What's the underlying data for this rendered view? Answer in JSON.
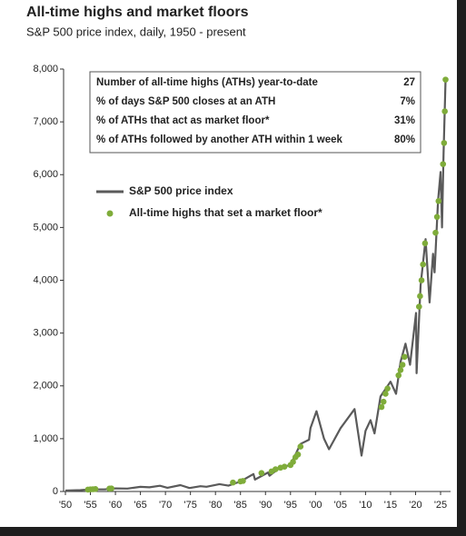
{
  "chart_data": {
    "type": "line",
    "title": "All-time highs and market floors",
    "subtitle": "S&P 500 price index, daily, 1950 - present",
    "xlim": [
      1950,
      2027
    ],
    "ylim": [
      0,
      8000
    ],
    "xticks": [
      {
        "value": 1950,
        "label": "'50"
      },
      {
        "value": 1955,
        "label": "'55"
      },
      {
        "value": 1960,
        "label": "'60"
      },
      {
        "value": 1965,
        "label": "'65"
      },
      {
        "value": 1970,
        "label": "'70"
      },
      {
        "value": 1975,
        "label": "'75"
      },
      {
        "value": 1980,
        "label": "'80"
      },
      {
        "value": 1985,
        "label": "'85"
      },
      {
        "value": 1990,
        "label": "'90"
      },
      {
        "value": 1995,
        "label": "'95"
      },
      {
        "value": 2000,
        "label": "'00"
      },
      {
        "value": 2005,
        "label": "'05"
      },
      {
        "value": 2010,
        "label": "'10"
      },
      {
        "value": 2015,
        "label": "'15"
      },
      {
        "value": 2020,
        "label": "'20"
      },
      {
        "value": 2025,
        "label": "'25"
      }
    ],
    "yticks": [
      0,
      {
        "value": 1000,
        "label": "1,000"
      },
      {
        "value": 2000,
        "label": "2,000"
      },
      {
        "value": 3000,
        "label": "3,000"
      },
      {
        "value": 4000,
        "label": "4,000"
      },
      {
        "value": 5000,
        "label": "5,000"
      },
      {
        "value": 6000,
        "label": "6,000"
      },
      {
        "value": 7000,
        "label": "7,000"
      },
      {
        "value": 8000,
        "label": "8,000"
      }
    ],
    "stats": [
      {
        "label": "Number of all-time highs (ATHs) year-to-date",
        "value": "27"
      },
      {
        "label": "% of days S&P 500 closes at an ATH",
        "value": "7%"
      },
      {
        "label": "% of ATHs that act as market floor*",
        "value": "31%"
      },
      {
        "label": "% of ATHs followed by another ATH within 1 week",
        "value": "80%"
      }
    ],
    "series": [
      {
        "name": "S&P 500 price index",
        "mark": "line",
        "color": "#5a5a5a",
        "x": [
          1950,
          1953,
          1955,
          1957.8,
          1960,
          1962.4,
          1965,
          1966.8,
          1968.9,
          1970.4,
          1973,
          1974.8,
          1977,
          1978.2,
          1980.8,
          1982.6,
          1985,
          1987.6,
          1987.9,
          1990.5,
          1990.8,
          1993,
          1995,
          1997,
          1998.7,
          1999,
          2000.2,
          2001.7,
          2002.7,
          2005,
          2007.8,
          2009.2,
          2010,
          2011,
          2011.8,
          2013,
          2015,
          2016.1,
          2017,
          2018,
          2018.9,
          2020.1,
          2020.2,
          2021,
          2022,
          2022.8,
          2023.5,
          2023.8,
          2024.5,
          2025,
          2025.3,
          2025.6,
          2026
        ],
        "values": [
          17,
          25,
          40,
          40,
          58,
          55,
          88,
          80,
          108,
          70,
          120,
          65,
          100,
          90,
          140,
          110,
          190,
          330,
          225,
          360,
          300,
          460,
          500,
          900,
          980,
          1200,
          1520,
          1000,
          800,
          1200,
          1560,
          680,
          1150,
          1350,
          1100,
          1800,
          2080,
          1850,
          2450,
          2800,
          2400,
          3380,
          2240,
          3900,
          4780,
          3580,
          4500,
          4150,
          5500,
          6050,
          5000,
          6400,
          7800
        ]
      },
      {
        "name": "All-time highs that set a market floor*",
        "mark": "dot",
        "color": "#7fac3a",
        "x": [
          1954.5,
          1955,
          1955.5,
          1956,
          1958.8,
          1959.2,
          1983.5,
          1985,
          1985.5,
          1989.2,
          1991.2,
          1992,
          1993,
          1993.8,
          1995,
          1995.5,
          1996,
          1996.5,
          1997,
          2013.2,
          2013.6,
          2014,
          2014.4,
          2016.6,
          2017,
          2017.4,
          2017.8,
          2020.7,
          2020.9,
          2021.2,
          2021.5,
          2021.9,
          2024,
          2024.3,
          2024.6,
          2025.5,
          2025.7,
          2025.85,
          2026
        ],
        "values": [
          35,
          40,
          43,
          46,
          55,
          58,
          170,
          190,
          200,
          350,
          380,
          420,
          450,
          470,
          500,
          560,
          650,
          700,
          850,
          1600,
          1700,
          1850,
          1950,
          2200,
          2300,
          2400,
          2550,
          3500,
          3700,
          4000,
          4300,
          4700,
          4900,
          5200,
          5500,
          6200,
          6600,
          7200,
          7800
        ]
      }
    ],
    "legend": "upper left"
  }
}
